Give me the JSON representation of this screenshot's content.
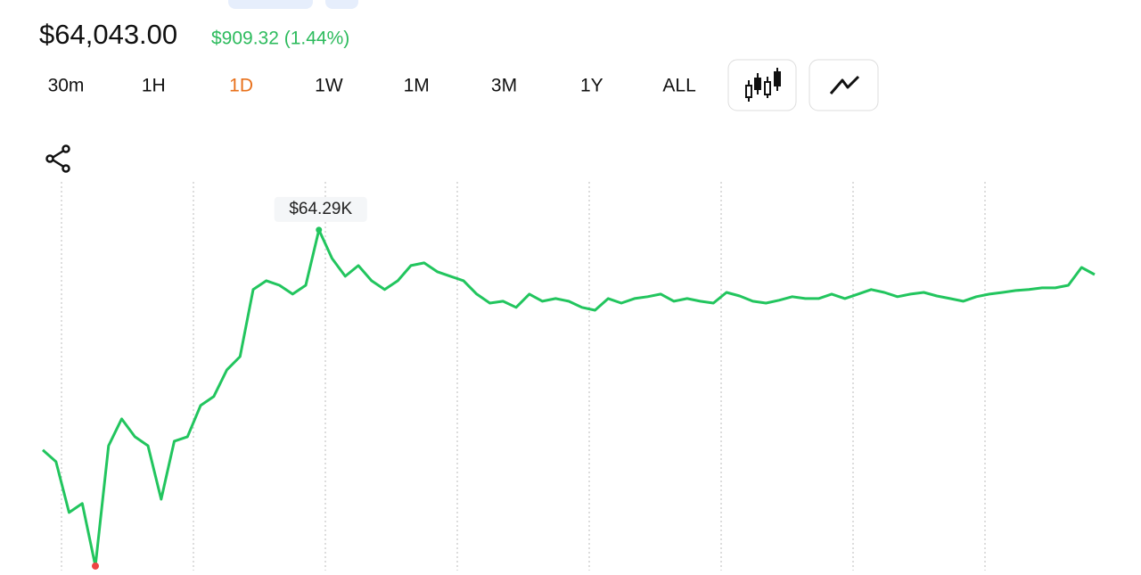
{
  "price": "$64,043.00",
  "change": "$909.32 (1.44%)",
  "timeframes": [
    "30m",
    "1H",
    "1D",
    "1W",
    "1M",
    "3M",
    "1Y",
    "ALL"
  ],
  "active_timeframe": "1D",
  "chart_data": {
    "type": "line",
    "color": "#22c55e",
    "grid": true,
    "annotation": "$64.29K",
    "ylim": [
      62475,
      64565
    ],
    "values": [
      63117,
      63055,
      62784,
      62832,
      62499,
      63140,
      63283,
      63188,
      63140,
      62855,
      63164,
      63188,
      63354,
      63402,
      63544,
      63615,
      63972,
      64019,
      63995,
      63948,
      63995,
      64290,
      64138,
      64043,
      64100,
      64019,
      63972,
      64019,
      64100,
      64114,
      64067,
      64043,
      64019,
      63948,
      63900,
      63910,
      63877,
      63948,
      63910,
      63924,
      63910,
      63877,
      63862,
      63924,
      63900,
      63924,
      63934,
      63948,
      63910,
      63924,
      63910,
      63900,
      63957,
      63938,
      63910,
      63900,
      63915,
      63934,
      63924,
      63924,
      63948,
      63924,
      63948,
      63972,
      63957,
      63934,
      63948,
      63957,
      63938,
      63924,
      63910,
      63934,
      63948,
      63957,
      63967,
      63972,
      63981,
      63981,
      63995,
      64090,
      64052
    ]
  }
}
